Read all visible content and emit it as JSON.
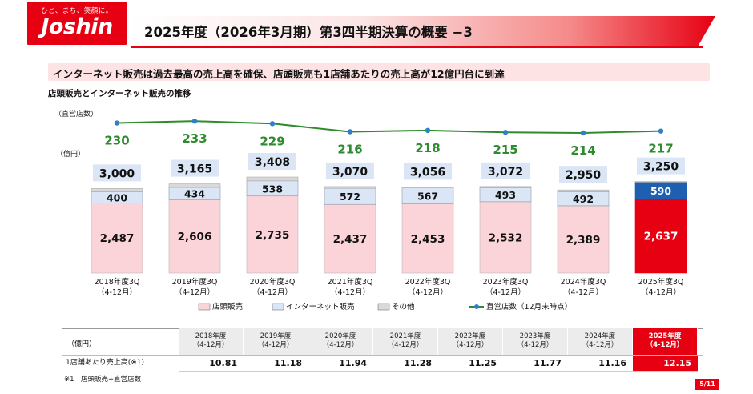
{
  "logo": {
    "tagline": "ひと、まち、笑顔に。",
    "word": "Joshin"
  },
  "header": {
    "title": "2025年度（2026年3月期）第3四半期決算の概要 −3"
  },
  "banner": {
    "text": "インターネット販売は過去最高の売上高を確保、店頭販売も1店舗あたりの売上高が12億円台に到達"
  },
  "subtitle": "店頭販売とインターネット販売の推移",
  "chart_data": {
    "type": "bar",
    "stacked": true,
    "store_axis_label": "（直営店数）",
    "sales_axis_label": "（億円）",
    "categories": [
      [
        "2018年度3Q",
        "（4-12月）"
      ],
      [
        "2019年度3Q",
        "（4-12月）"
      ],
      [
        "2020年度3Q",
        "（4-12月）"
      ],
      [
        "2021年度3Q",
        "（4-12月）"
      ],
      [
        "2022年度3Q",
        "（4-12月）"
      ],
      [
        "2023年度3Q",
        "（4-12月）"
      ],
      [
        "2024年度3Q",
        "（4-12月）"
      ],
      [
        "2025年度3Q",
        "（4-12月）"
      ]
    ],
    "series": [
      {
        "name": "店頭販売",
        "values": [
          2487,
          2606,
          2735,
          2437,
          2453,
          2532,
          2389,
          2637
        ],
        "color": "#fad4d8",
        "highlight_color": "#e60012"
      },
      {
        "name": "インターネット販売",
        "values": [
          400,
          434,
          538,
          572,
          567,
          493,
          492,
          590
        ],
        "color": "#dae6f5",
        "highlight_color": "#1f5fb0"
      },
      {
        "name": "その他",
        "values": [
          113,
          125,
          135,
          61,
          36,
          47,
          69,
          23
        ],
        "color": "#d9d9d9"
      }
    ],
    "totals": [
      3000,
      3165,
      3408,
      3070,
      3056,
      3072,
      2950,
      3250
    ],
    "line": {
      "name": "直営店数（12月末時点）",
      "values": [
        230,
        233,
        229,
        216,
        218,
        215,
        214,
        217
      ],
      "color": "#2e8b2e",
      "marker_color": "#2f80c8"
    },
    "highlight_index": 7,
    "total_label_bg": "#dae6f5",
    "number_format": "thousands-comma"
  },
  "table": {
    "unit": "（億円）",
    "row_label": "1店舗あたり売上高(※1)",
    "headers": [
      [
        "2018年度",
        "（4-12月）"
      ],
      [
        "2019年度",
        "（4-12月）"
      ],
      [
        "2020年度",
        "（4-12月）"
      ],
      [
        "2021年度",
        "（4-12月）"
      ],
      [
        "2022年度",
        "（4-12月）"
      ],
      [
        "2023年度",
        "（4-12月）"
      ],
      [
        "2024年度",
        "（4-12月）"
      ],
      [
        "2025年度",
        "（4-12月）"
      ]
    ],
    "values": [
      "10.81",
      "11.18",
      "11.94",
      "11.28",
      "11.25",
      "11.77",
      "11.16",
      "12.15"
    ]
  },
  "note": "※1　店頭販売÷直営店数",
  "page_number": "5/11",
  "colors": {
    "brand_red": "#e60012"
  }
}
